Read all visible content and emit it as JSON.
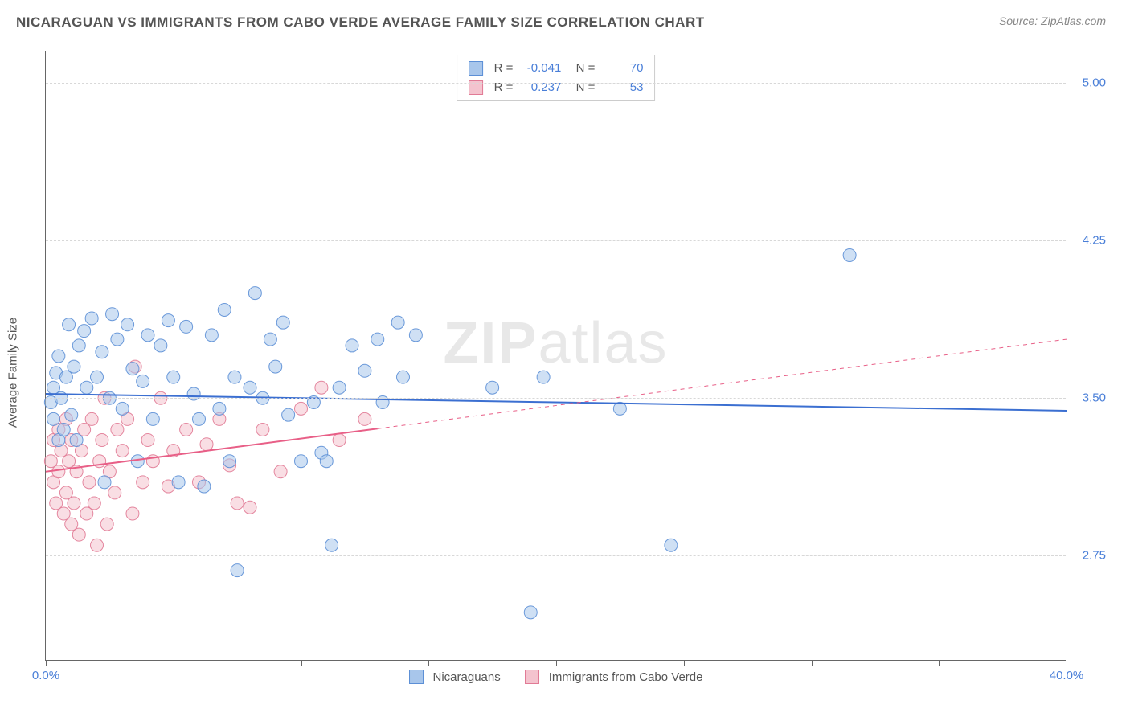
{
  "header": {
    "title": "NICARAGUAN VS IMMIGRANTS FROM CABO VERDE AVERAGE FAMILY SIZE CORRELATION CHART",
    "source": "Source: ZipAtlas.com"
  },
  "chart": {
    "type": "scatter",
    "y_axis_label": "Average Family Size",
    "xlim": [
      0,
      40
    ],
    "ylim": [
      2.25,
      5.15
    ],
    "x_tick_labels": {
      "min": "0.0%",
      "max": "40.0%"
    },
    "x_minor_ticks": [
      0,
      5,
      10,
      15,
      20,
      25,
      30,
      35,
      40
    ],
    "y_ticks": [
      {
        "v": 5.0,
        "label": "5.00"
      },
      {
        "v": 4.25,
        "label": "4.25"
      },
      {
        "v": 3.5,
        "label": "3.50"
      },
      {
        "v": 2.75,
        "label": "2.75"
      }
    ],
    "grid_color": "#d8d8d8",
    "background_color": "#ffffff",
    "axis_color": "#666666",
    "tick_label_color": "#4a7fd8",
    "watermark": {
      "part1": "ZIP",
      "part2": "atlas"
    },
    "marker_radius": 8,
    "marker_opacity": 0.55,
    "marker_stroke_opacity": 0.9,
    "series": [
      {
        "name": "Nicaraguans",
        "fill": "#a8c6eb",
        "stroke": "#5c8fd6",
        "R": "-0.041",
        "N": "70",
        "trend": {
          "y_at_x0": 3.52,
          "y_at_x40": 3.44,
          "solid_until_x": 40,
          "line_color": "#3b6fd1",
          "line_width": 2
        },
        "points": [
          [
            0.2,
            3.48
          ],
          [
            0.3,
            3.55
          ],
          [
            0.3,
            3.4
          ],
          [
            0.4,
            3.62
          ],
          [
            0.5,
            3.3
          ],
          [
            0.5,
            3.7
          ],
          [
            0.6,
            3.5
          ],
          [
            0.7,
            3.35
          ],
          [
            0.8,
            3.6
          ],
          [
            0.9,
            3.85
          ],
          [
            1.0,
            3.42
          ],
          [
            1.1,
            3.65
          ],
          [
            1.2,
            3.3
          ],
          [
            1.3,
            3.75
          ],
          [
            1.5,
            3.82
          ],
          [
            1.6,
            3.55
          ],
          [
            1.8,
            3.88
          ],
          [
            2.0,
            3.6
          ],
          [
            2.2,
            3.72
          ],
          [
            2.3,
            3.1
          ],
          [
            2.5,
            3.5
          ],
          [
            2.6,
            3.9
          ],
          [
            2.8,
            3.78
          ],
          [
            3.0,
            3.45
          ],
          [
            3.2,
            3.85
          ],
          [
            3.4,
            3.64
          ],
          [
            3.6,
            3.2
          ],
          [
            3.8,
            3.58
          ],
          [
            4.0,
            3.8
          ],
          [
            4.2,
            3.4
          ],
          [
            4.5,
            3.75
          ],
          [
            4.8,
            3.87
          ],
          [
            5.0,
            3.6
          ],
          [
            5.2,
            3.1
          ],
          [
            5.5,
            3.84
          ],
          [
            5.8,
            3.52
          ],
          [
            6.0,
            3.4
          ],
          [
            6.2,
            3.08
          ],
          [
            6.5,
            3.8
          ],
          [
            6.8,
            3.45
          ],
          [
            7.0,
            3.92
          ],
          [
            7.2,
            3.2
          ],
          [
            7.4,
            3.6
          ],
          [
            7.5,
            2.68
          ],
          [
            8.0,
            3.55
          ],
          [
            8.2,
            4.0
          ],
          [
            8.5,
            3.5
          ],
          [
            8.8,
            3.78
          ],
          [
            9.0,
            3.65
          ],
          [
            9.3,
            3.86
          ],
          [
            9.5,
            3.42
          ],
          [
            10.0,
            3.2
          ],
          [
            10.5,
            3.48
          ],
          [
            10.8,
            3.24
          ],
          [
            11.0,
            3.2
          ],
          [
            11.2,
            2.8
          ],
          [
            11.5,
            3.55
          ],
          [
            12.0,
            3.75
          ],
          [
            12.5,
            3.63
          ],
          [
            13.0,
            3.78
          ],
          [
            13.2,
            3.48
          ],
          [
            13.8,
            3.86
          ],
          [
            14.5,
            3.8
          ],
          [
            17.5,
            3.55
          ],
          [
            19.0,
            2.48
          ],
          [
            19.5,
            3.6
          ],
          [
            22.5,
            3.45
          ],
          [
            24.5,
            2.8
          ],
          [
            31.5,
            4.18
          ],
          [
            14.0,
            3.6
          ]
        ]
      },
      {
        "name": "Immigrants from Cabo Verde",
        "fill": "#f4c3ce",
        "stroke": "#e17a95",
        "R": "0.237",
        "N": "53",
        "trend": {
          "y_at_x0": 3.15,
          "y_at_x40": 3.78,
          "solid_until_x": 13,
          "line_color": "#e85f87",
          "line_width": 2
        },
        "points": [
          [
            0.2,
            3.2
          ],
          [
            0.3,
            3.1
          ],
          [
            0.3,
            3.3
          ],
          [
            0.4,
            3.0
          ],
          [
            0.5,
            3.15
          ],
          [
            0.5,
            3.35
          ],
          [
            0.6,
            3.25
          ],
          [
            0.7,
            2.95
          ],
          [
            0.8,
            3.4
          ],
          [
            0.8,
            3.05
          ],
          [
            0.9,
            3.2
          ],
          [
            1.0,
            2.9
          ],
          [
            1.0,
            3.3
          ],
          [
            1.1,
            3.0
          ],
          [
            1.2,
            3.15
          ],
          [
            1.3,
            2.85
          ],
          [
            1.4,
            3.25
          ],
          [
            1.5,
            3.35
          ],
          [
            1.6,
            2.95
          ],
          [
            1.7,
            3.1
          ],
          [
            1.8,
            3.4
          ],
          [
            1.9,
            3.0
          ],
          [
            2.0,
            2.8
          ],
          [
            2.1,
            3.2
          ],
          [
            2.2,
            3.3
          ],
          [
            2.3,
            3.5
          ],
          [
            2.4,
            2.9
          ],
          [
            2.5,
            3.15
          ],
          [
            2.7,
            3.05
          ],
          [
            2.8,
            3.35
          ],
          [
            3.0,
            3.25
          ],
          [
            3.2,
            3.4
          ],
          [
            3.4,
            2.95
          ],
          [
            3.5,
            3.65
          ],
          [
            3.8,
            3.1
          ],
          [
            4.0,
            3.3
          ],
          [
            4.2,
            3.2
          ],
          [
            4.5,
            3.5
          ],
          [
            4.8,
            3.08
          ],
          [
            5.0,
            3.25
          ],
          [
            5.5,
            3.35
          ],
          [
            6.0,
            3.1
          ],
          [
            6.3,
            3.28
          ],
          [
            6.8,
            3.4
          ],
          [
            7.2,
            3.18
          ],
          [
            7.5,
            3.0
          ],
          [
            8.0,
            2.98
          ],
          [
            8.5,
            3.35
          ],
          [
            9.2,
            3.15
          ],
          [
            10.0,
            3.45
          ],
          [
            10.8,
            3.55
          ],
          [
            11.5,
            3.3
          ],
          [
            12.5,
            3.4
          ]
        ]
      }
    ],
    "series_legend": [
      {
        "swatch_fill": "#a8c6eb",
        "swatch_stroke": "#5c8fd6",
        "label": "Nicaraguans"
      },
      {
        "swatch_fill": "#f4c3ce",
        "swatch_stroke": "#e17a95",
        "label": "Immigrants from Cabo Verde"
      }
    ]
  }
}
